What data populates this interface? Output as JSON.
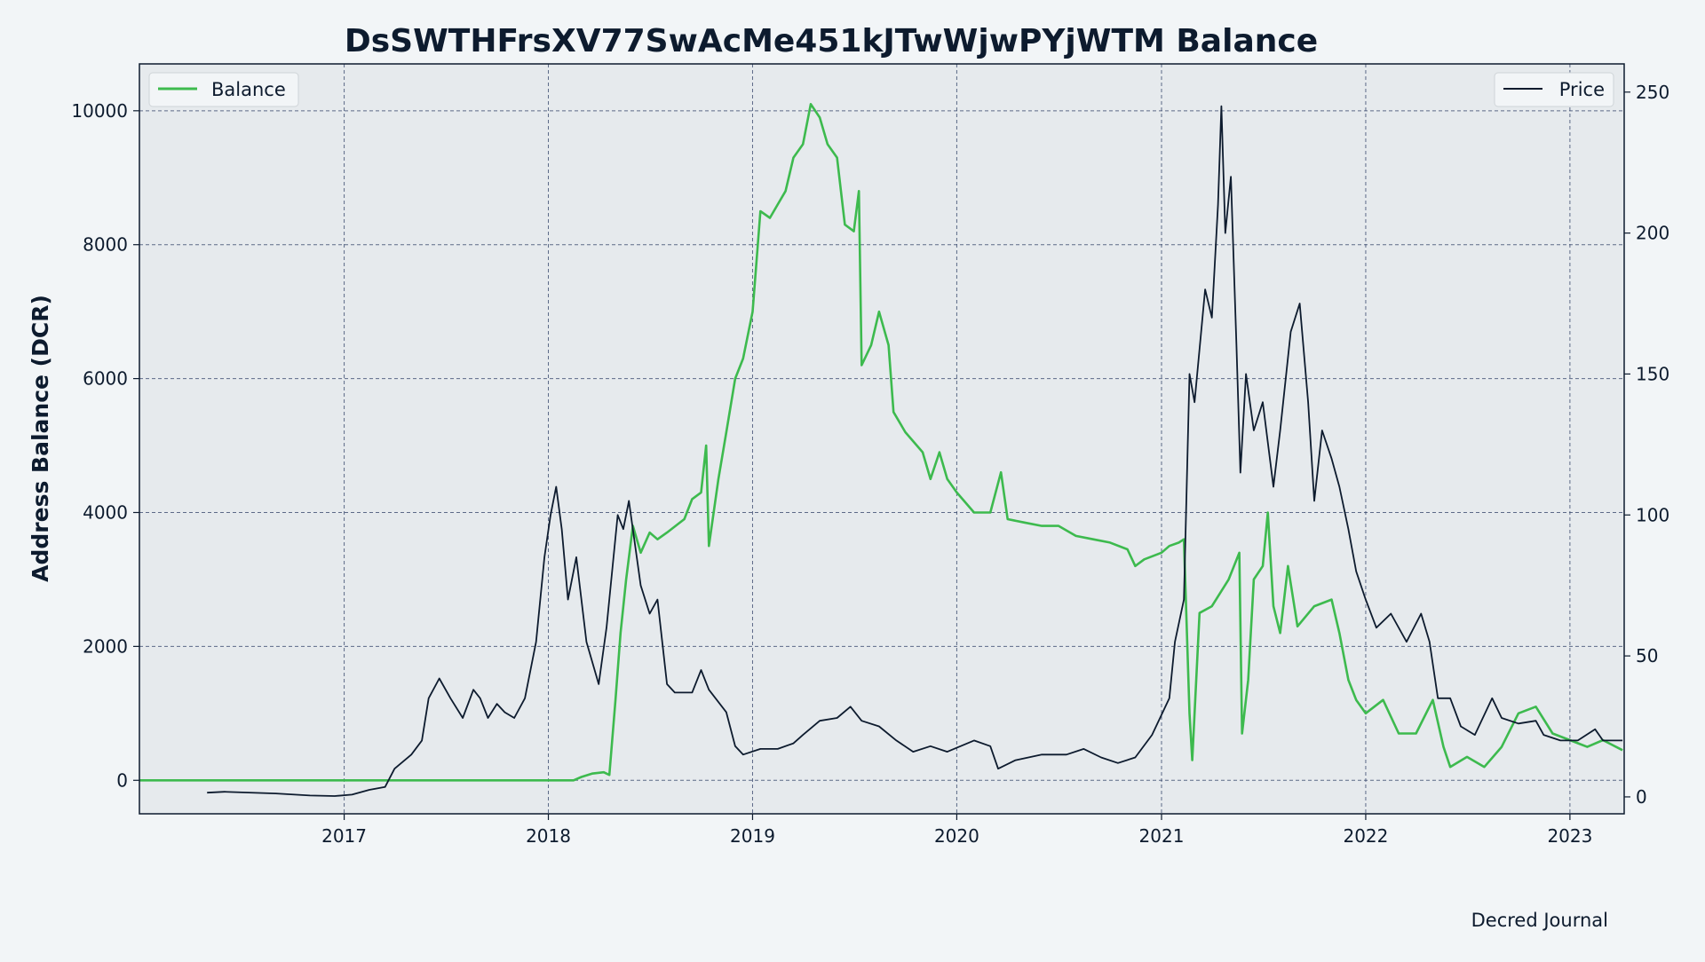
{
  "chart_data": {
    "type": "line",
    "title": "DsSWTHFrsXV77SwAcMe451kJTwWjwPYjWTM Balance",
    "xlabel": "",
    "ylabel": "Address Balance (DCR)",
    "y2label": "",
    "watermark": "Decred Journal",
    "x_ticks": [
      "2017",
      "2018",
      "2019",
      "2020",
      "2021",
      "2022",
      "2023"
    ],
    "y_ticks": [
      0,
      2000,
      4000,
      6000,
      8000,
      10000
    ],
    "y2_ticks": [
      0,
      50,
      100,
      150,
      200,
      250
    ],
    "xlim": [
      "2016-01-01",
      "2023-04-08"
    ],
    "ylim": [
      -500,
      10700
    ],
    "y2lim": [
      -6,
      260
    ],
    "grid": true,
    "legend_left": "top-left",
    "legend_right": "top-right",
    "colors": {
      "balance": "#3dba4e",
      "price": "#0d1b2e",
      "grid": "#3a4a6e",
      "plot_bg": "#e6eaed"
    },
    "series": [
      {
        "name": "Balance",
        "axis": "left",
        "points": [
          [
            "2016-01-01",
            0
          ],
          [
            "2018-02-15",
            0
          ],
          [
            "2018-03-01",
            50
          ],
          [
            "2018-03-20",
            100
          ],
          [
            "2018-04-10",
            120
          ],
          [
            "2018-04-20",
            80
          ],
          [
            "2018-05-01",
            1200
          ],
          [
            "2018-05-10",
            2200
          ],
          [
            "2018-05-20",
            3000
          ],
          [
            "2018-06-01",
            3800
          ],
          [
            "2018-06-15",
            3400
          ],
          [
            "2018-07-01",
            3700
          ],
          [
            "2018-07-15",
            3600
          ],
          [
            "2018-08-01",
            3700
          ],
          [
            "2018-09-01",
            3900
          ],
          [
            "2018-09-15",
            4200
          ],
          [
            "2018-10-01",
            4300
          ],
          [
            "2018-10-10",
            5000
          ],
          [
            "2018-10-15",
            3500
          ],
          [
            "2018-11-01",
            4500
          ],
          [
            "2018-11-15",
            5200
          ],
          [
            "2018-12-01",
            6000
          ],
          [
            "2018-12-15",
            6300
          ],
          [
            "2019-01-01",
            7000
          ],
          [
            "2019-01-15",
            8500
          ],
          [
            "2019-02-01",
            8400
          ],
          [
            "2019-02-15",
            8600
          ],
          [
            "2019-03-01",
            8800
          ],
          [
            "2019-03-15",
            9300
          ],
          [
            "2019-04-01",
            9500
          ],
          [
            "2019-04-15",
            10100
          ],
          [
            "2019-05-01",
            9900
          ],
          [
            "2019-05-15",
            9500
          ],
          [
            "2019-06-01",
            9300
          ],
          [
            "2019-06-15",
            8300
          ],
          [
            "2019-07-01",
            8200
          ],
          [
            "2019-07-10",
            8800
          ],
          [
            "2019-07-15",
            6200
          ],
          [
            "2019-08-01",
            6500
          ],
          [
            "2019-08-15",
            7000
          ],
          [
            "2019-09-01",
            6500
          ],
          [
            "2019-09-10",
            5500
          ],
          [
            "2019-10-01",
            5200
          ],
          [
            "2019-11-01",
            4900
          ],
          [
            "2019-11-15",
            4500
          ],
          [
            "2019-12-01",
            4900
          ],
          [
            "2019-12-15",
            4500
          ],
          [
            "2020-01-01",
            4300
          ],
          [
            "2020-02-01",
            4000
          ],
          [
            "2020-03-01",
            4000
          ],
          [
            "2020-03-20",
            4600
          ],
          [
            "2020-04-01",
            3900
          ],
          [
            "2020-05-01",
            3850
          ],
          [
            "2020-06-01",
            3800
          ],
          [
            "2020-07-01",
            3800
          ],
          [
            "2020-08-01",
            3650
          ],
          [
            "2020-09-01",
            3600
          ],
          [
            "2020-10-01",
            3550
          ],
          [
            "2020-11-01",
            3450
          ],
          [
            "2020-11-15",
            3200
          ],
          [
            "2020-12-01",
            3300
          ],
          [
            "2021-01-01",
            3400
          ],
          [
            "2021-01-15",
            3500
          ],
          [
            "2021-02-01",
            3550
          ],
          [
            "2021-02-10",
            3600
          ],
          [
            "2021-02-20",
            1000
          ],
          [
            "2021-02-25",
            300
          ],
          [
            "2021-03-10",
            2500
          ],
          [
            "2021-04-01",
            2600
          ],
          [
            "2021-05-01",
            3000
          ],
          [
            "2021-05-20",
            3400
          ],
          [
            "2021-05-25",
            700
          ],
          [
            "2021-06-05",
            1500
          ],
          [
            "2021-06-15",
            3000
          ],
          [
            "2021-07-01",
            3200
          ],
          [
            "2021-07-10",
            4000
          ],
          [
            "2021-07-20",
            2600
          ],
          [
            "2021-08-01",
            2200
          ],
          [
            "2021-08-15",
            3200
          ],
          [
            "2021-09-01",
            2300
          ],
          [
            "2021-10-01",
            2600
          ],
          [
            "2021-11-01",
            2700
          ],
          [
            "2021-11-15",
            2200
          ],
          [
            "2021-12-01",
            1500
          ],
          [
            "2021-12-15",
            1200
          ],
          [
            "2022-01-01",
            1000
          ],
          [
            "2022-02-01",
            1200
          ],
          [
            "2022-03-01",
            700
          ],
          [
            "2022-04-01",
            700
          ],
          [
            "2022-05-01",
            1200
          ],
          [
            "2022-05-20",
            500
          ],
          [
            "2022-06-01",
            200
          ],
          [
            "2022-07-01",
            350
          ],
          [
            "2022-08-01",
            200
          ],
          [
            "2022-09-01",
            500
          ],
          [
            "2022-10-01",
            1000
          ],
          [
            "2022-11-01",
            1100
          ],
          [
            "2022-12-01",
            700
          ],
          [
            "2023-01-01",
            600
          ],
          [
            "2023-02-01",
            500
          ],
          [
            "2023-03-01",
            600
          ],
          [
            "2023-04-05",
            450
          ]
        ]
      },
      {
        "name": "Price",
        "axis": "right",
        "points": [
          [
            "2016-05-01",
            1.5
          ],
          [
            "2016-06-01",
            1.8
          ],
          [
            "2016-09-01",
            1.2
          ],
          [
            "2016-11-01",
            0.5
          ],
          [
            "2016-12-15",
            0.3
          ],
          [
            "2017-01-15",
            0.8
          ],
          [
            "2017-02-15",
            2.5
          ],
          [
            "2017-03-15",
            3.5
          ],
          [
            "2017-04-01",
            10
          ],
          [
            "2017-05-01",
            15
          ],
          [
            "2017-05-20",
            20
          ],
          [
            "2017-06-01",
            35
          ],
          [
            "2017-06-20",
            42
          ],
          [
            "2017-07-10",
            35
          ],
          [
            "2017-08-01",
            28
          ],
          [
            "2017-08-20",
            38
          ],
          [
            "2017-09-01",
            35
          ],
          [
            "2017-09-15",
            28
          ],
          [
            "2017-10-01",
            33
          ],
          [
            "2017-10-15",
            30
          ],
          [
            "2017-11-01",
            28
          ],
          [
            "2017-11-20",
            35
          ],
          [
            "2017-12-10",
            55
          ],
          [
            "2017-12-25",
            85
          ],
          [
            "2018-01-05",
            100
          ],
          [
            "2018-01-15",
            110
          ],
          [
            "2018-01-25",
            95
          ],
          [
            "2018-02-05",
            70
          ],
          [
            "2018-02-20",
            85
          ],
          [
            "2018-03-10",
            55
          ],
          [
            "2018-04-01",
            40
          ],
          [
            "2018-04-15",
            60
          ],
          [
            "2018-04-25",
            80
          ],
          [
            "2018-05-05",
            100
          ],
          [
            "2018-05-15",
            95
          ],
          [
            "2018-05-25",
            105
          ],
          [
            "2018-06-15",
            75
          ],
          [
            "2018-07-01",
            65
          ],
          [
            "2018-07-15",
            70
          ],
          [
            "2018-08-01",
            40
          ],
          [
            "2018-08-15",
            37
          ],
          [
            "2018-09-15",
            37
          ],
          [
            "2018-10-01",
            45
          ],
          [
            "2018-10-15",
            38
          ],
          [
            "2018-11-15",
            30
          ],
          [
            "2018-12-01",
            18
          ],
          [
            "2018-12-15",
            15
          ],
          [
            "2019-01-15",
            17
          ],
          [
            "2019-02-15",
            17
          ],
          [
            "2019-03-15",
            19
          ],
          [
            "2019-04-01",
            22
          ],
          [
            "2019-05-01",
            27
          ],
          [
            "2019-06-01",
            28
          ],
          [
            "2019-06-25",
            32
          ],
          [
            "2019-07-15",
            27
          ],
          [
            "2019-08-15",
            25
          ],
          [
            "2019-09-15",
            20
          ],
          [
            "2019-10-15",
            16
          ],
          [
            "2019-11-15",
            18
          ],
          [
            "2019-12-15",
            16
          ],
          [
            "2020-02-01",
            20
          ],
          [
            "2020-03-01",
            18
          ],
          [
            "2020-03-15",
            10
          ],
          [
            "2020-04-15",
            13
          ],
          [
            "2020-06-01",
            15
          ],
          [
            "2020-07-15",
            15
          ],
          [
            "2020-08-15",
            17
          ],
          [
            "2020-09-15",
            14
          ],
          [
            "2020-10-15",
            12
          ],
          [
            "2020-11-15",
            14
          ],
          [
            "2020-12-15",
            22
          ],
          [
            "2021-01-15",
            35
          ],
          [
            "2021-01-25",
            55
          ],
          [
            "2021-02-10",
            70
          ],
          [
            "2021-02-20",
            150
          ],
          [
            "2021-03-01",
            140
          ],
          [
            "2021-03-20",
            180
          ],
          [
            "2021-04-01",
            170
          ],
          [
            "2021-04-12",
            210
          ],
          [
            "2021-04-18",
            245
          ],
          [
            "2021-04-25",
            200
          ],
          [
            "2021-05-05",
            220
          ],
          [
            "2021-05-15",
            160
          ],
          [
            "2021-05-22",
            115
          ],
          [
            "2021-06-01",
            150
          ],
          [
            "2021-06-15",
            130
          ],
          [
            "2021-07-01",
            140
          ],
          [
            "2021-07-20",
            110
          ],
          [
            "2021-08-01",
            130
          ],
          [
            "2021-08-20",
            165
          ],
          [
            "2021-09-05",
            175
          ],
          [
            "2021-09-20",
            140
          ],
          [
            "2021-10-01",
            105
          ],
          [
            "2021-10-15",
            130
          ],
          [
            "2021-11-01",
            120
          ],
          [
            "2021-11-15",
            110
          ],
          [
            "2021-12-01",
            95
          ],
          [
            "2021-12-15",
            80
          ],
          [
            "2022-01-01",
            70
          ],
          [
            "2022-01-20",
            60
          ],
          [
            "2022-02-15",
            65
          ],
          [
            "2022-03-15",
            55
          ],
          [
            "2022-04-10",
            65
          ],
          [
            "2022-04-25",
            55
          ],
          [
            "2022-05-10",
            35
          ],
          [
            "2022-06-01",
            35
          ],
          [
            "2022-06-20",
            25
          ],
          [
            "2022-07-15",
            22
          ],
          [
            "2022-08-15",
            35
          ],
          [
            "2022-09-01",
            28
          ],
          [
            "2022-10-01",
            26
          ],
          [
            "2022-11-01",
            27
          ],
          [
            "2022-11-15",
            22
          ],
          [
            "2022-12-15",
            20
          ],
          [
            "2023-01-15",
            20
          ],
          [
            "2023-02-15",
            24
          ],
          [
            "2023-03-01",
            20
          ],
          [
            "2023-04-05",
            20
          ]
        ]
      }
    ]
  }
}
